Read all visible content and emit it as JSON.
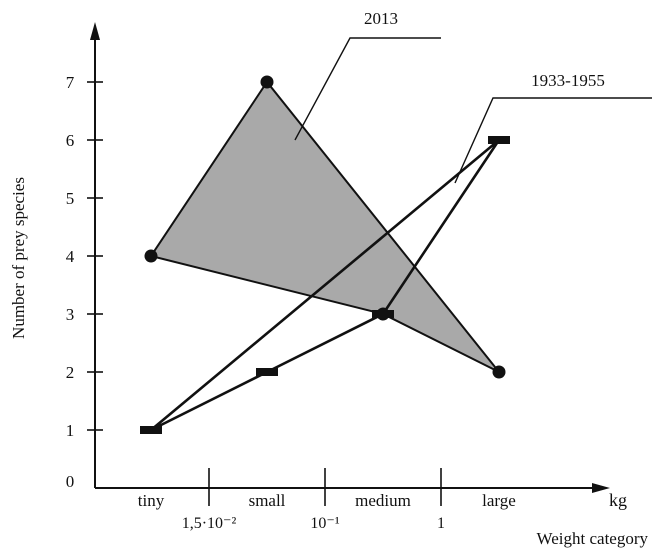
{
  "chart_data": {
    "type": "line",
    "title": "",
    "xlabel": "Weight category",
    "ylabel": "Number of prey species",
    "x_unit": "kg",
    "categories": [
      "tiny",
      "small",
      "medium",
      "large"
    ],
    "category_boundaries": [
      "1,5·10⁻²",
      "10⁻¹",
      "1"
    ],
    "yticks": [
      "0",
      "1",
      "2",
      "3",
      "4",
      "5",
      "6",
      "7"
    ],
    "ylim": [
      0,
      7.5
    ],
    "grid": false,
    "series": [
      {
        "name": "2013",
        "style": "filled-polygon",
        "marker": "circle",
        "color": "#111111",
        "fill": "#a9a9a9",
        "points": [
          {
            "category": "tiny",
            "y": 4
          },
          {
            "category": "small",
            "y": 7
          },
          {
            "category": "large",
            "y": 2
          },
          {
            "category": "medium",
            "y": 3
          }
        ]
      },
      {
        "name": "1933-1955",
        "style": "closed-polyline",
        "marker": "bar",
        "color": "#111111",
        "points": [
          {
            "category": "tiny",
            "y": 1
          },
          {
            "category": "small",
            "y": 2
          },
          {
            "category": "medium",
            "y": 3
          },
          {
            "category": "large",
            "y": 6
          }
        ]
      }
    ]
  }
}
